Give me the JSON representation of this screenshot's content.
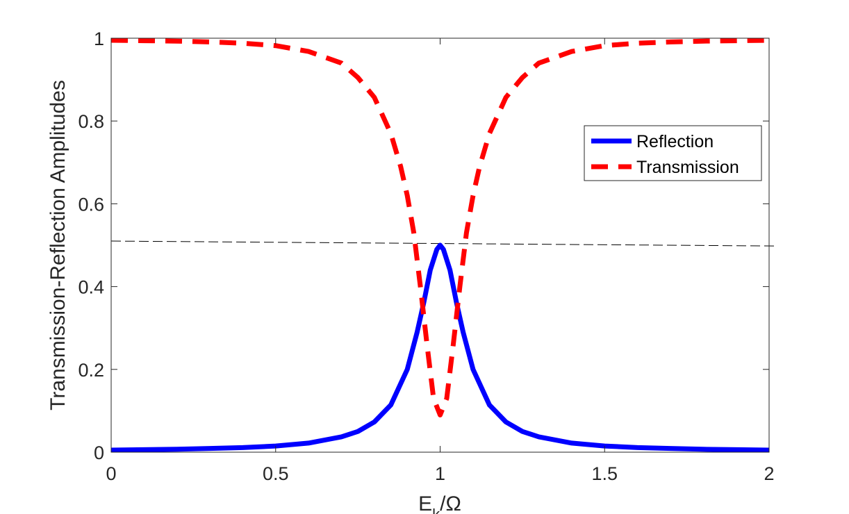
{
  "chart_data": {
    "type": "line",
    "title": "",
    "xlabel": "E_k/Ω",
    "ylabel": "Transmission-Reflection Amplitudes",
    "xlim": [
      0,
      2
    ],
    "ylim": [
      0,
      1
    ],
    "xticks": [
      "0",
      "0.5",
      "1",
      "1.5",
      "2"
    ],
    "yticks": [
      "0",
      "0.2",
      "0.4",
      "0.6",
      "0.8",
      "1"
    ],
    "grid": false,
    "legend_position": "right",
    "reference_line": {
      "style": "thin-dashed",
      "color": "#000000",
      "x": [
        0,
        2
      ],
      "y": [
        0.51,
        0.498
      ]
    },
    "series": [
      {
        "name": "Reflection",
        "style": "solid",
        "color": "#0000ff",
        "x": [
          0,
          0.1,
          0.2,
          0.3,
          0.4,
          0.5,
          0.6,
          0.7,
          0.75,
          0.8,
          0.85,
          0.9,
          0.93,
          0.95,
          0.97,
          0.99,
          1.0,
          1.01,
          1.03,
          1.05,
          1.07,
          1.1,
          1.15,
          1.2,
          1.25,
          1.3,
          1.4,
          1.5,
          1.6,
          1.7,
          1.8,
          1.9,
          2.0
        ],
        "y": [
          0.005,
          0.006,
          0.007,
          0.009,
          0.011,
          0.015,
          0.022,
          0.037,
          0.05,
          0.073,
          0.114,
          0.2,
          0.29,
          0.36,
          0.44,
          0.49,
          0.5,
          0.49,
          0.44,
          0.36,
          0.29,
          0.2,
          0.114,
          0.073,
          0.05,
          0.037,
          0.022,
          0.015,
          0.011,
          0.009,
          0.007,
          0.006,
          0.005
        ]
      },
      {
        "name": "Transmission",
        "style": "dashed",
        "color": "#ff0000",
        "x": [
          0,
          0.1,
          0.2,
          0.3,
          0.4,
          0.5,
          0.6,
          0.7,
          0.75,
          0.8,
          0.85,
          0.88,
          0.9,
          0.92,
          0.94,
          0.96,
          0.98,
          1.0,
          1.02,
          1.04,
          1.06,
          1.08,
          1.1,
          1.12,
          1.15,
          1.2,
          1.25,
          1.3,
          1.4,
          1.5,
          1.6,
          1.7,
          1.8,
          1.9,
          2.0
        ],
        "y": [
          0.995,
          0.994,
          0.993,
          0.991,
          0.988,
          0.982,
          0.968,
          0.94,
          0.905,
          0.857,
          0.77,
          0.69,
          0.62,
          0.53,
          0.4,
          0.26,
          0.13,
          0.09,
          0.13,
          0.26,
          0.4,
          0.53,
          0.62,
          0.69,
          0.77,
          0.857,
          0.905,
          0.94,
          0.968,
          0.982,
          0.988,
          0.991,
          0.993,
          0.994,
          0.995
        ]
      }
    ]
  }
}
